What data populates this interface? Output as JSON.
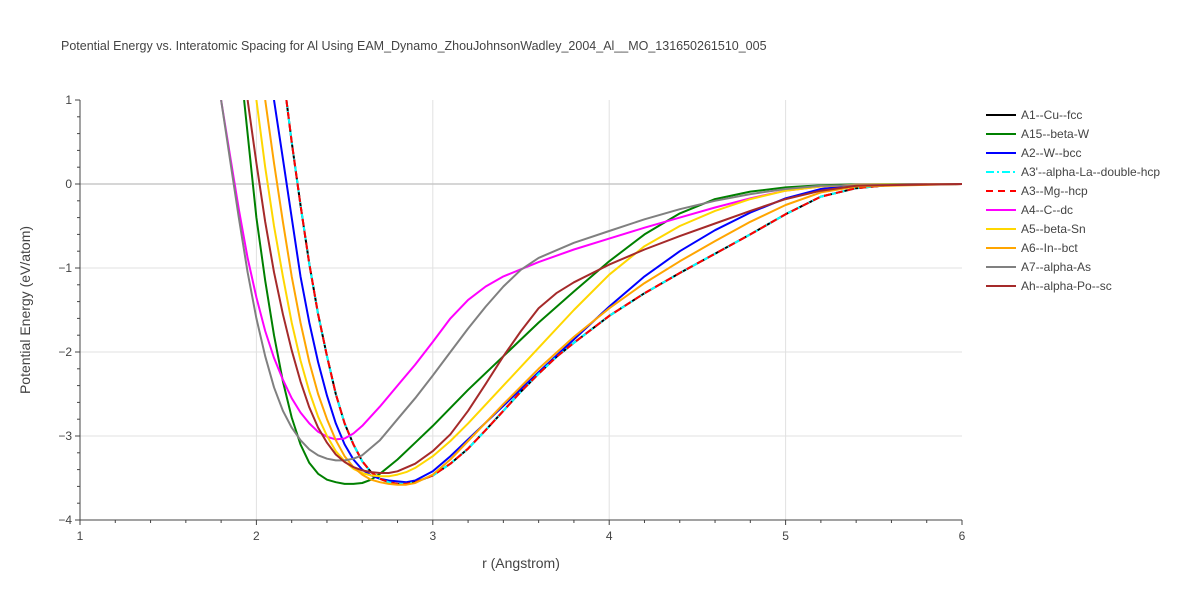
{
  "chart_data": {
    "type": "line",
    "title": "Potential Energy vs. Interatomic Spacing for Al Using EAM_Dynamo_ZhouJohnsonWadley_2004_Al__MO_131650261510_005",
    "xlabel": "r (Angstrom)",
    "ylabel": "Potential Energy (eV/atom)",
    "xlim": [
      1,
      6
    ],
    "ylim": [
      -4,
      1
    ],
    "xticks": [
      1,
      2,
      3,
      4,
      5,
      6
    ],
    "yticks": [
      -4,
      -3,
      -2,
      -1,
      0,
      1
    ],
    "grid": true,
    "legend_position": "top-right",
    "series": [
      {
        "name": "A1--Cu--fcc",
        "color": "#000000",
        "dash": "solid",
        "x": [
          2.17,
          2.2,
          2.25,
          2.3,
          2.35,
          2.4,
          2.45,
          2.5,
          2.55,
          2.6,
          2.65,
          2.7,
          2.75,
          2.8,
          2.85,
          2.9,
          3.0,
          3.1,
          3.2,
          3.3,
          3.4,
          3.5,
          3.6,
          3.7,
          3.8,
          3.9,
          4.0,
          4.2,
          4.4,
          4.6,
          4.8,
          5.0,
          5.2,
          5.4,
          5.6,
          6.0
        ],
        "y": [
          1.0,
          0.5,
          -0.25,
          -0.95,
          -1.55,
          -2.05,
          -2.5,
          -2.85,
          -3.1,
          -3.3,
          -3.43,
          -3.51,
          -3.55,
          -3.57,
          -3.57,
          -3.55,
          -3.47,
          -3.33,
          -3.15,
          -2.93,
          -2.7,
          -2.47,
          -2.26,
          -2.06,
          -1.89,
          -1.73,
          -1.57,
          -1.3,
          -1.06,
          -0.83,
          -0.6,
          -0.36,
          -0.15,
          -0.05,
          -0.01,
          0.0
        ]
      },
      {
        "name": "A15--beta-W",
        "color": "#008000",
        "dash": "solid",
        "x": [
          1.93,
          1.97,
          2.0,
          2.05,
          2.1,
          2.15,
          2.2,
          2.25,
          2.3,
          2.35,
          2.4,
          2.45,
          2.5,
          2.55,
          2.6,
          2.65,
          2.7,
          2.8,
          2.9,
          3.0,
          3.2,
          3.4,
          3.6,
          3.8,
          4.0,
          4.2,
          4.4,
          4.6,
          4.8,
          5.0,
          5.2,
          5.4,
          6.0
        ],
        "y": [
          1.0,
          0.2,
          -0.4,
          -1.15,
          -1.8,
          -2.35,
          -2.78,
          -3.1,
          -3.32,
          -3.45,
          -3.52,
          -3.55,
          -3.57,
          -3.57,
          -3.56,
          -3.52,
          -3.45,
          -3.28,
          -3.08,
          -2.88,
          -2.45,
          -2.05,
          -1.65,
          -1.28,
          -0.92,
          -0.6,
          -0.35,
          -0.18,
          -0.09,
          -0.04,
          -0.015,
          -0.005,
          0.0
        ]
      },
      {
        "name": "A2--W--bcc",
        "color": "#0000ff",
        "dash": "solid",
        "x": [
          2.1,
          2.15,
          2.2,
          2.25,
          2.3,
          2.35,
          2.4,
          2.45,
          2.5,
          2.55,
          2.6,
          2.65,
          2.7,
          2.75,
          2.8,
          2.85,
          2.9,
          3.0,
          3.1,
          3.2,
          3.4,
          3.6,
          3.8,
          4.0,
          4.2,
          4.4,
          4.6,
          4.8,
          5.0,
          5.2,
          5.4,
          6.0
        ],
        "y": [
          1.0,
          0.3,
          -0.4,
          -1.1,
          -1.65,
          -2.12,
          -2.52,
          -2.85,
          -3.1,
          -3.28,
          -3.4,
          -3.47,
          -3.51,
          -3.53,
          -3.54,
          -3.55,
          -3.53,
          -3.42,
          -3.24,
          -3.04,
          -2.64,
          -2.24,
          -1.85,
          -1.46,
          -1.1,
          -0.8,
          -0.55,
          -0.34,
          -0.17,
          -0.06,
          -0.01,
          0.0
        ]
      },
      {
        "name": "A3'--alpha-La--double-hcp",
        "color": "#00ffff",
        "dash": "dashdot",
        "x": [
          2.17,
          2.2,
          2.25,
          2.3,
          2.35,
          2.4,
          2.45,
          2.5,
          2.55,
          2.6,
          2.65,
          2.7,
          2.75,
          2.8,
          2.85,
          2.9,
          3.0,
          3.1,
          3.2,
          3.3,
          3.4,
          3.5,
          3.6,
          3.7,
          3.8,
          3.9,
          4.0,
          4.2,
          4.4,
          4.6,
          4.8,
          5.0,
          5.2,
          5.4,
          5.6,
          6.0
        ],
        "y": [
          1.0,
          0.5,
          -0.25,
          -0.95,
          -1.55,
          -2.05,
          -2.5,
          -2.85,
          -3.1,
          -3.3,
          -3.43,
          -3.51,
          -3.55,
          -3.57,
          -3.57,
          -3.55,
          -3.47,
          -3.33,
          -3.15,
          -2.93,
          -2.7,
          -2.47,
          -2.26,
          -2.06,
          -1.89,
          -1.73,
          -1.57,
          -1.3,
          -1.06,
          -0.83,
          -0.6,
          -0.36,
          -0.15,
          -0.05,
          -0.01,
          0.0
        ]
      },
      {
        "name": "A3--Mg--hcp",
        "color": "#ff0000",
        "dash": "dash",
        "x": [
          2.17,
          2.2,
          2.25,
          2.3,
          2.35,
          2.4,
          2.45,
          2.5,
          2.55,
          2.6,
          2.65,
          2.7,
          2.75,
          2.8,
          2.85,
          2.9,
          3.0,
          3.1,
          3.2,
          3.3,
          3.4,
          3.5,
          3.6,
          3.7,
          3.8,
          3.9,
          4.0,
          4.2,
          4.4,
          4.6,
          4.8,
          5.0,
          5.2,
          5.4,
          5.6,
          6.0
        ],
        "y": [
          1.0,
          0.5,
          -0.25,
          -0.95,
          -1.55,
          -2.05,
          -2.5,
          -2.85,
          -3.1,
          -3.3,
          -3.43,
          -3.51,
          -3.55,
          -3.57,
          -3.57,
          -3.55,
          -3.47,
          -3.33,
          -3.15,
          -2.93,
          -2.7,
          -2.47,
          -2.26,
          -2.06,
          -1.89,
          -1.73,
          -1.57,
          -1.3,
          -1.06,
          -0.83,
          -0.6,
          -0.36,
          -0.15,
          -0.05,
          -0.01,
          0.0
        ]
      },
      {
        "name": "A4--C--dc",
        "color": "#ff00ff",
        "dash": "solid",
        "x": [
          1.8,
          1.85,
          1.9,
          1.95,
          2.0,
          2.05,
          2.1,
          2.15,
          2.2,
          2.25,
          2.3,
          2.35,
          2.4,
          2.45,
          2.5,
          2.55,
          2.6,
          2.7,
          2.8,
          2.9,
          3.0,
          3.1,
          3.2,
          3.3,
          3.4,
          3.6,
          3.8,
          4.0,
          4.2,
          4.4,
          4.6,
          4.8,
          5.0,
          5.2,
          5.4,
          6.0
        ],
        "y": [
          1.0,
          0.35,
          -0.3,
          -0.88,
          -1.35,
          -1.75,
          -2.07,
          -2.33,
          -2.55,
          -2.72,
          -2.85,
          -2.95,
          -3.01,
          -3.04,
          -3.03,
          -2.97,
          -2.88,
          -2.65,
          -2.4,
          -2.15,
          -1.88,
          -1.6,
          -1.38,
          -1.22,
          -1.1,
          -0.93,
          -0.78,
          -0.65,
          -0.52,
          -0.4,
          -0.28,
          -0.17,
          -0.08,
          -0.03,
          -0.01,
          0.0
        ]
      },
      {
        "name": "A5--beta-Sn",
        "color": "#ffd700",
        "dash": "solid",
        "x": [
          2.0,
          2.05,
          2.1,
          2.15,
          2.2,
          2.25,
          2.3,
          2.35,
          2.4,
          2.45,
          2.5,
          2.55,
          2.6,
          2.65,
          2.7,
          2.75,
          2.8,
          2.85,
          2.9,
          3.0,
          3.1,
          3.2,
          3.4,
          3.6,
          3.8,
          4.0,
          4.2,
          4.4,
          4.6,
          4.8,
          5.0,
          5.2,
          5.4,
          6.0
        ],
        "y": [
          1.0,
          0.2,
          -0.5,
          -1.1,
          -1.65,
          -2.1,
          -2.47,
          -2.77,
          -3.0,
          -3.18,
          -3.3,
          -3.39,
          -3.44,
          -3.47,
          -3.48,
          -3.48,
          -3.46,
          -3.43,
          -3.38,
          -3.24,
          -3.06,
          -2.85,
          -2.4,
          -1.95,
          -1.5,
          -1.08,
          -0.74,
          -0.5,
          -0.32,
          -0.18,
          -0.08,
          -0.03,
          -0.01,
          0.0
        ]
      },
      {
        "name": "A6--In--bct",
        "color": "#ffa500",
        "dash": "solid",
        "x": [
          2.05,
          2.1,
          2.15,
          2.2,
          2.25,
          2.3,
          2.35,
          2.4,
          2.45,
          2.5,
          2.55,
          2.6,
          2.65,
          2.7,
          2.75,
          2.8,
          2.85,
          2.9,
          3.0,
          3.1,
          3.2,
          3.4,
          3.6,
          3.8,
          4.0,
          4.2,
          4.4,
          4.6,
          4.8,
          5.0,
          5.2,
          5.4,
          6.0
        ],
        "y": [
          1.0,
          0.25,
          -0.45,
          -1.1,
          -1.65,
          -2.12,
          -2.5,
          -2.8,
          -3.05,
          -3.24,
          -3.37,
          -3.46,
          -3.52,
          -3.55,
          -3.57,
          -3.58,
          -3.58,
          -3.56,
          -3.46,
          -3.28,
          -3.06,
          -2.62,
          -2.2,
          -1.82,
          -1.48,
          -1.18,
          -0.92,
          -0.68,
          -0.45,
          -0.25,
          -0.1,
          -0.03,
          0.0
        ]
      },
      {
        "name": "A7--alpha-As",
        "color": "#808080",
        "dash": "solid",
        "x": [
          1.8,
          1.85,
          1.9,
          1.95,
          2.0,
          2.05,
          2.1,
          2.15,
          2.2,
          2.25,
          2.3,
          2.35,
          2.4,
          2.45,
          2.5,
          2.55,
          2.6,
          2.7,
          2.8,
          2.9,
          3.0,
          3.1,
          3.2,
          3.3,
          3.4,
          3.5,
          3.6,
          3.8,
          4.0,
          4.2,
          4.4,
          4.6,
          4.8,
          5.0,
          5.2,
          6.0
        ],
        "y": [
          1.0,
          0.3,
          -0.4,
          -1.05,
          -1.6,
          -2.05,
          -2.42,
          -2.7,
          -2.9,
          -3.05,
          -3.16,
          -3.23,
          -3.27,
          -3.29,
          -3.29,
          -3.27,
          -3.23,
          -3.05,
          -2.8,
          -2.55,
          -2.28,
          -2.0,
          -1.72,
          -1.46,
          -1.22,
          -1.02,
          -0.88,
          -0.7,
          -0.56,
          -0.42,
          -0.3,
          -0.2,
          -0.12,
          -0.06,
          -0.02,
          0.0
        ]
      },
      {
        "name": "Ah--alpha-Po--sc",
        "color": "#a52a2a",
        "dash": "solid",
        "x": [
          1.95,
          2.0,
          2.05,
          2.1,
          2.15,
          2.2,
          2.25,
          2.3,
          2.35,
          2.4,
          2.45,
          2.5,
          2.55,
          2.6,
          2.65,
          2.7,
          2.75,
          2.8,
          2.9,
          3.0,
          3.1,
          3.2,
          3.3,
          3.4,
          3.5,
          3.6,
          3.7,
          3.8,
          4.0,
          4.2,
          4.4,
          4.6,
          4.8,
          5.0,
          5.2,
          5.4,
          6.0
        ],
        "y": [
          1.0,
          0.25,
          -0.45,
          -1.05,
          -1.55,
          -1.98,
          -2.35,
          -2.66,
          -2.9,
          -3.08,
          -3.22,
          -3.31,
          -3.37,
          -3.41,
          -3.43,
          -3.44,
          -3.44,
          -3.42,
          -3.33,
          -3.18,
          -2.98,
          -2.7,
          -2.38,
          -2.05,
          -1.75,
          -1.48,
          -1.3,
          -1.17,
          -0.96,
          -0.78,
          -0.62,
          -0.47,
          -0.32,
          -0.18,
          -0.08,
          -0.02,
          0.0
        ]
      }
    ]
  }
}
